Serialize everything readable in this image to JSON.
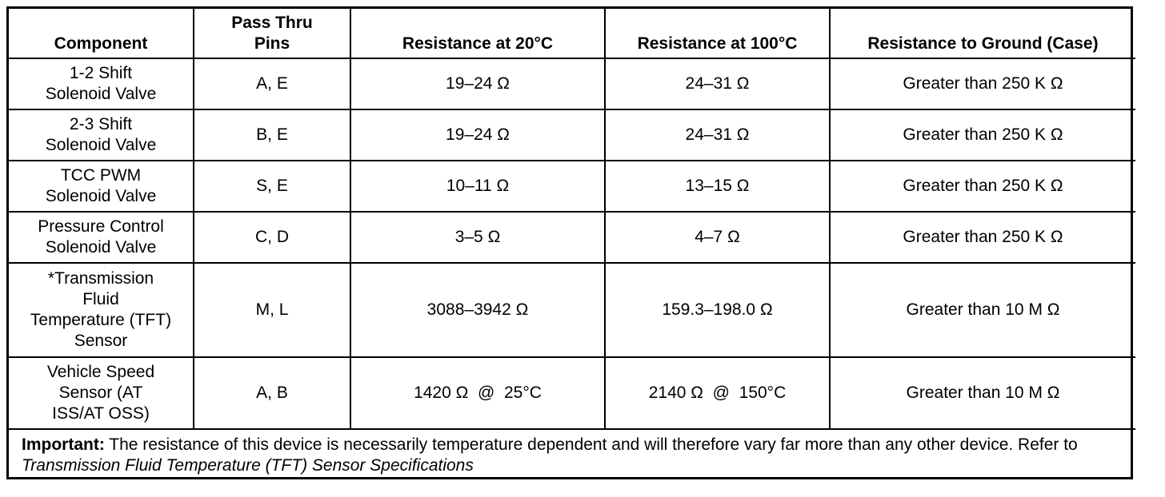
{
  "table": {
    "headers": [
      "Component",
      "Pass Thru\nPins",
      "Resistance at 20°C",
      "Resistance at 100°C",
      "Resistance to Ground (Case)"
    ],
    "rows": [
      [
        "1-2 Shift\nSolenoid Valve",
        "A, E",
        "19–24 Ω",
        "24–31 Ω",
        "Greater than 250 K Ω"
      ],
      [
        "2-3 Shift\nSolenoid Valve",
        "B, E",
        "19–24 Ω",
        "24–31 Ω",
        "Greater than 250 K Ω"
      ],
      [
        "TCC PWM\nSolenoid Valve",
        "S, E",
        "10–11 Ω",
        "13–15 Ω",
        "Greater than 250 K Ω"
      ],
      [
        "Pressure Control\nSolenoid Valve",
        "C, D",
        "3–5 Ω",
        "4–7 Ω",
        "Greater than 250 K Ω"
      ],
      [
        "*Transmission\nFluid\nTemperature (TFT)\nSensor",
        "M, L",
        "3088–3942 Ω",
        "159.3–198.0 Ω",
        "Greater than 10 M Ω"
      ],
      [
        "Vehicle Speed\nSensor (AT\nISS/AT OSS)",
        "A, B",
        "1420 Ω  @  25°C",
        "2140 Ω  @  150°C",
        "Greater than 10 M Ω"
      ]
    ]
  },
  "note": {
    "label": "Important:",
    "text": " The resistance of this device is necessarily temperature dependent and will therefore vary far more than any other device. Refer to ",
    "reference": "Transmission Fluid Temperature (TFT) Sensor Specifications"
  }
}
